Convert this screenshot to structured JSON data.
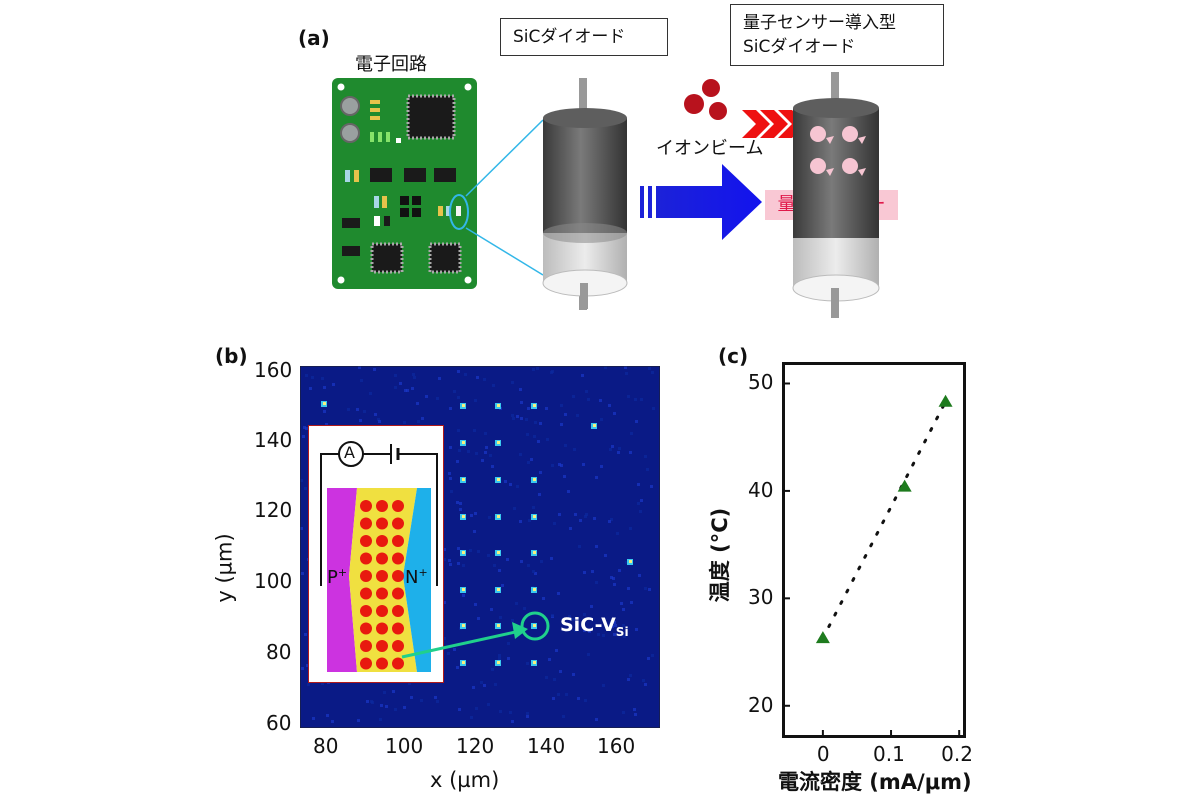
{
  "panel_a": {
    "label": "(a)",
    "circuit_label": "電子回路",
    "diode_label": "SiCダイオード",
    "sensor_diode_label_line1": "量子センサー導入型",
    "sensor_diode_label_line2": "SiCダイオード",
    "ion_beam_label": "イオンビーム",
    "quantum_sensor_label": "量子センサー"
  },
  "panel_b": {
    "label": "(b)",
    "xlabel": "x (µm)",
    "ylabel": "y (µm)",
    "x_ticks": [
      "80",
      "100",
      "120",
      "140",
      "160"
    ],
    "y_ticks": [
      "160",
      "140",
      "120",
      "100",
      "80",
      "60"
    ],
    "inset": {
      "ammeter": "A",
      "p_label": "P",
      "n_label": "N",
      "plus": "+"
    },
    "annotation": "SiC-V",
    "annotation_sub": "Si"
  },
  "chart_data": {
    "type": "scatter",
    "title": "",
    "panel_label": "(c)",
    "xlabel": "電流密度 (mA/μm)",
    "ylabel": "温度 (°C)",
    "x_ticks": [
      "0",
      "0.1",
      "0.2"
    ],
    "y_ticks": [
      "20",
      "30",
      "40",
      "50"
    ],
    "xlim": [
      -0.06,
      0.21
    ],
    "ylim": [
      17,
      52
    ],
    "series": [
      {
        "x": [
          0,
          0.12,
          0.18
        ],
        "y": [
          26.3,
          40.4,
          48.3
        ],
        "marker": "triangle",
        "color": "#1e7b1e"
      }
    ],
    "trend_line": {
      "style": "dotted",
      "color": "#111111"
    }
  }
}
